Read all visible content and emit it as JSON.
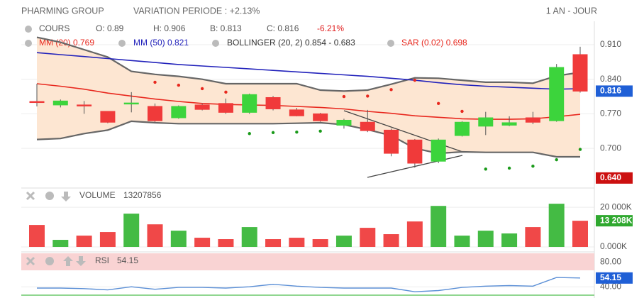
{
  "header": {
    "title": "PHARMING GROUP",
    "variation": "VARIATION PERIODE : +2.13%",
    "period": "1 AN - JOUR"
  },
  "chart_data": [
    {
      "type": "candlestick",
      "legend_title": "COURS",
      "stats": [
        "O: 0.89",
        "H: 0.906",
        "B: 0.813",
        "C: 0.816"
      ],
      "change": "-6.21%",
      "categories": [
        null,
        null,
        null,
        null,
        null,
        null,
        null,
        null,
        null,
        null,
        null,
        null,
        null,
        null,
        null,
        null,
        null,
        null,
        null,
        null,
        null,
        null,
        null,
        null
      ],
      "open": [
        0.795,
        0.788,
        0.788,
        0.775,
        0.792,
        0.785,
        0.762,
        0.788,
        0.791,
        0.773,
        0.803,
        0.778,
        0.77,
        0.747,
        0.753,
        0.737,
        0.717,
        0.674,
        0.726,
        0.745,
        0.747,
        0.762,
        0.756,
        0.89
      ],
      "high": [
        0.831,
        0.799,
        0.796,
        0.775,
        0.814,
        0.791,
        0.787,
        0.791,
        0.801,
        0.811,
        0.806,
        0.782,
        0.772,
        0.76,
        0.778,
        0.74,
        0.719,
        0.72,
        0.755,
        0.774,
        0.765,
        0.774,
        0.871,
        0.906
      ],
      "low": [
        0.785,
        0.783,
        0.77,
        0.751,
        0.773,
        0.753,
        0.76,
        0.777,
        0.77,
        0.77,
        0.777,
        0.765,
        0.754,
        0.74,
        0.733,
        0.684,
        0.661,
        0.67,
        0.724,
        0.727,
        0.745,
        0.749,
        0.754,
        0.813
      ],
      "close": [
        0.794,
        0.796,
        0.787,
        0.753,
        0.792,
        0.756,
        0.785,
        0.779,
        0.773,
        0.809,
        0.78,
        0.766,
        0.756,
        0.757,
        0.736,
        0.69,
        0.67,
        0.717,
        0.753,
        0.762,
        0.752,
        0.753,
        0.864,
        0.816
      ],
      "up_color": "#3cd43c",
      "down_color": "#f03a3a",
      "series": [
        {
          "name": "MM (20) 0.769",
          "kind": "line",
          "color": "#e8281e",
          "values": [
            0.831,
            0.826,
            0.82,
            0.812,
            0.806,
            0.8,
            0.795,
            0.791,
            0.789,
            0.788,
            0.787,
            0.785,
            0.783,
            0.78,
            0.775,
            0.771,
            0.766,
            0.763,
            0.76,
            0.759,
            0.759,
            0.76,
            0.764,
            0.769
          ]
        },
        {
          "name": "MM (50) 0.821",
          "kind": "line",
          "color": "#2222bb",
          "values": [
            0.894,
            0.89,
            0.886,
            0.882,
            0.878,
            0.874,
            0.87,
            0.867,
            0.864,
            0.861,
            0.858,
            0.855,
            0.852,
            0.849,
            0.846,
            0.842,
            0.838,
            0.833,
            0.829,
            0.826,
            0.824,
            0.822,
            0.82,
            0.821
          ]
        },
        {
          "name": "BOLLINGER (20, 2) 0.854 - 0.683",
          "kind": "band",
          "color": "#666666",
          "fill": "#fde6d2",
          "upper": [
            0.925,
            0.915,
            0.9,
            0.885,
            0.856,
            0.85,
            0.846,
            0.84,
            0.831,
            0.831,
            0.831,
            0.831,
            0.818,
            0.816,
            0.818,
            0.83,
            0.843,
            0.842,
            0.838,
            0.834,
            0.834,
            0.832,
            0.847,
            0.854
          ],
          "lower": [
            0.718,
            0.72,
            0.73,
            0.737,
            0.755,
            0.752,
            0.75,
            0.75,
            0.75,
            0.75,
            0.75,
            0.751,
            0.752,
            0.748,
            0.738,
            0.726,
            0.7,
            0.69,
            0.693,
            0.692,
            0.692,
            0.692,
            0.683,
            0.683
          ]
        },
        {
          "name": "SAR (0.02) 0.698",
          "kind": "dots",
          "color": "#e8281e",
          "alt_color": "#1a9a1a",
          "values": [
            null,
            null,
            null,
            null,
            null,
            0.834,
            0.828,
            0.821,
            0.814,
            0.73,
            0.732,
            0.733,
            0.735,
            0.805,
            0.806,
            0.819,
            0.838,
            0.791,
            0.775,
            0.658,
            0.66,
            0.664,
            0.677,
            0.698
          ]
        }
      ],
      "ylim": [
        0.624,
        0.946
      ],
      "yticks": [
        {
          "value": 0.91,
          "label": "0.910"
        },
        {
          "value": 0.84,
          "label": "0.840"
        },
        {
          "value": 0.77,
          "label": "0.770"
        },
        {
          "value": 0.7,
          "label": "0.700"
        }
      ],
      "markers": [
        {
          "value": 0.816,
          "label": "0.816",
          "color": "#1f5fd6"
        },
        {
          "value": 0.64,
          "label": "0.640",
          "color": "#cc1010"
        }
      ],
      "grid": true
    },
    {
      "type": "bar",
      "title": "VOLUME",
      "value_text": "13207856",
      "values": [
        11070,
        3570,
        5700,
        7500,
        16800,
        11400,
        8200,
        4640,
        3930,
        10000,
        3930,
        4640,
        3930,
        5700,
        9640,
        6430,
        12850,
        20700,
        5700,
        8200,
        6800,
        10000,
        21800,
        13208
      ],
      "colors": [
        "#f04848",
        "#44bb44",
        "#f04848",
        "#f04848",
        "#44bb44",
        "#f04848",
        "#44bb44",
        "#f04848",
        "#f04848",
        "#44bb44",
        "#f04848",
        "#f04848",
        "#f04848",
        "#44bb44",
        "#f04848",
        "#f04848",
        "#f04848",
        "#44bb44",
        "#44bb44",
        "#44bb44",
        "#44bb44",
        "#f04848",
        "#44bb44",
        "#f04848"
      ],
      "ylim": [
        0,
        24000
      ],
      "yticks": [
        {
          "value": 20000,
          "label": "20 000K"
        },
        {
          "value": 0,
          "label": "0.000K"
        }
      ],
      "markers": [
        {
          "value": 13208,
          "label": "13 208K",
          "color": "#2fa82f"
        }
      ],
      "grid": true
    },
    {
      "type": "line",
      "title": "RSI",
      "value_text": "54.15",
      "values": [
        38,
        38,
        37,
        35,
        40,
        36,
        39,
        39,
        38,
        40,
        44,
        41,
        39,
        38,
        38,
        38,
        32,
        34,
        39,
        41,
        42,
        41,
        55,
        54.15
      ],
      "color": "#5b8fd6",
      "ylim": [
        22,
        95
      ],
      "yticks": [
        {
          "value": 80,
          "label": "80.00"
        },
        {
          "value": 40,
          "label": "40.00"
        }
      ],
      "markers": [
        {
          "value": 54.15,
          "label": "54.15",
          "color": "#1f5fd6"
        }
      ],
      "grid": true
    }
  ]
}
